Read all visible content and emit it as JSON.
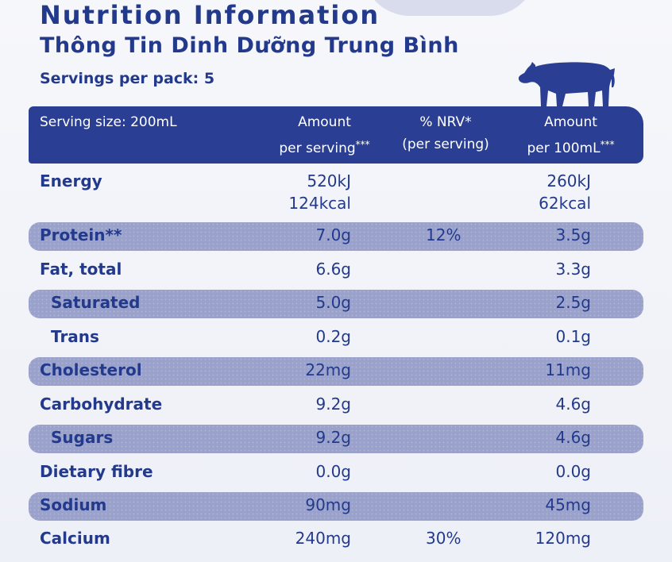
{
  "title": "Nutrition Information",
  "subtitle": "Thông Tin Dinh Dưỡng Trung Bình",
  "servings_label": "Servings per pack: 5",
  "colors": {
    "brand_blue": "#233a8c",
    "header_band": "#2a3f93",
    "row_shade": "#9aa2cc"
  },
  "header": {
    "serving_size": "Serving size: 200mL",
    "amount_serving_l1": "Amount",
    "amount_serving_l2": "per serving",
    "amount_serving_sup": "***",
    "nrv_l1": "% NRV*",
    "nrv_l2": "(per serving)",
    "amount_100_l1": "Amount",
    "amount_100_l2": "per 100mL",
    "amount_100_sup": "***"
  },
  "rows": [
    {
      "name": "Energy",
      "per_serving": "520kJ",
      "per_serving_2": "124kcal",
      "nrv": "",
      "per_100ml": "260kJ",
      "per_100ml_2": "62kcal"
    },
    {
      "name": "Protein**",
      "per_serving": "7.0g",
      "nrv": "12%",
      "per_100ml": "3.5g"
    },
    {
      "name": "Fat, total",
      "per_serving": "6.6g",
      "nrv": "",
      "per_100ml": "3.3g"
    },
    {
      "name": "Saturated",
      "per_serving": "5.0g",
      "nrv": "",
      "per_100ml": "2.5g"
    },
    {
      "name": "Trans",
      "per_serving": "0.2g",
      "nrv": "",
      "per_100ml": "0.1g"
    },
    {
      "name": "Cholesterol",
      "per_serving": "22mg",
      "nrv": "",
      "per_100ml": "11mg"
    },
    {
      "name": "Carbohydrate",
      "per_serving": "9.2g",
      "nrv": "",
      "per_100ml": "4.6g"
    },
    {
      "name": "Sugars",
      "per_serving": "9.2g",
      "nrv": "",
      "per_100ml": "4.6g"
    },
    {
      "name": "Dietary fibre",
      "per_serving": "0.0g",
      "nrv": "",
      "per_100ml": "0.0g"
    },
    {
      "name": "Sodium",
      "per_serving": "90mg",
      "nrv": "",
      "per_100ml": "45mg"
    },
    {
      "name": "Calcium",
      "per_serving": "240mg",
      "nrv": "30%",
      "per_100ml": "120mg"
    }
  ]
}
